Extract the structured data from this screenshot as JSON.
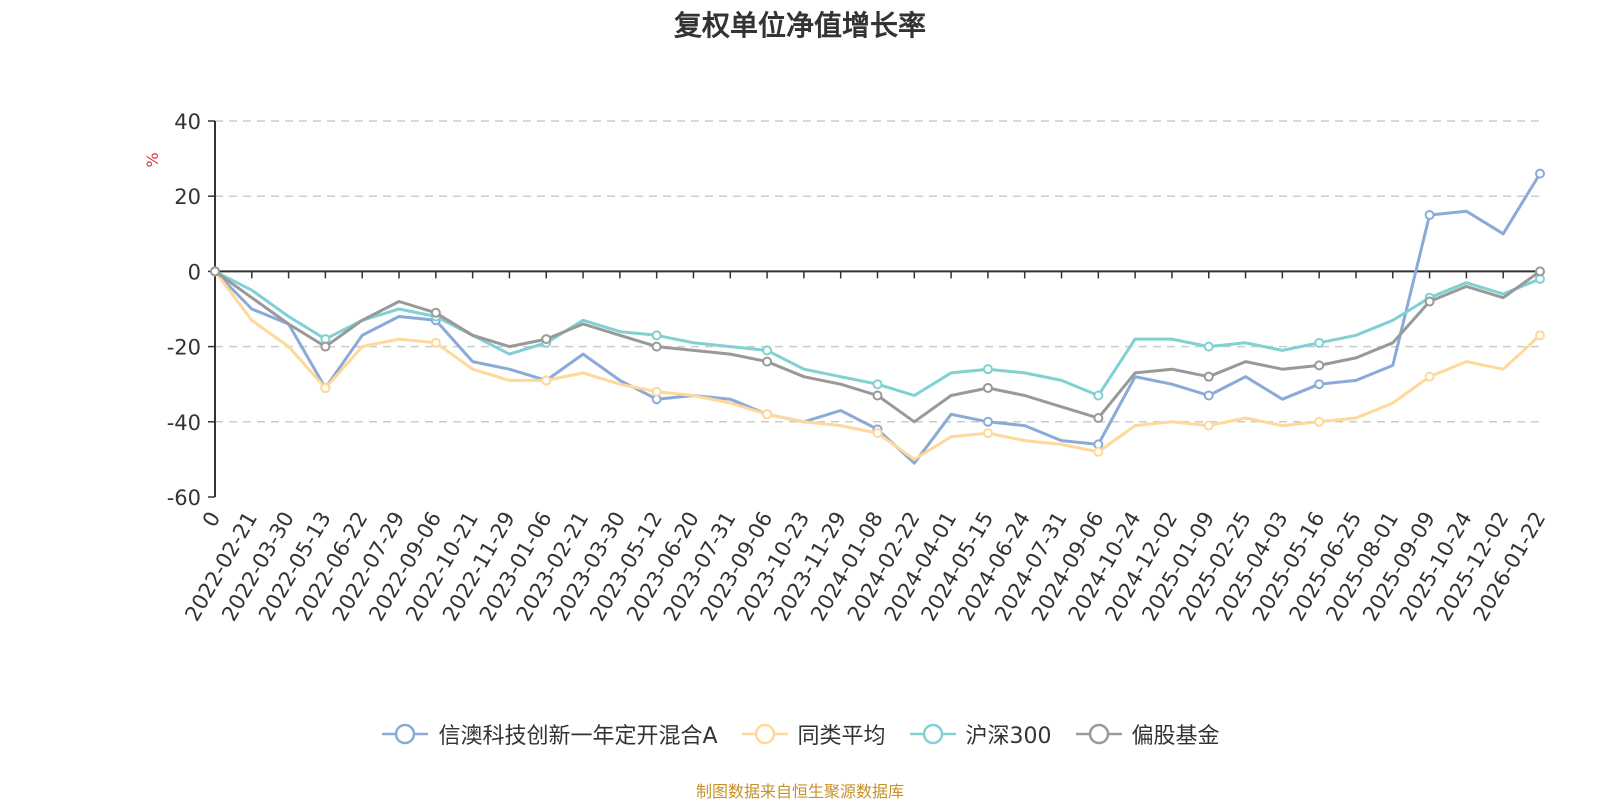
{
  "chart_data": {
    "type": "line",
    "title": "复权单位净值增长率",
    "ylabel": "%",
    "ylim": [
      -60,
      40
    ],
    "yticks": [
      -60,
      -40,
      -20,
      0,
      20,
      40
    ],
    "grid": true,
    "legend_position": "bottom-center",
    "x_tick_labels": [
      "0",
      "2022-02-21",
      "2022-03-30",
      "2022-05-13",
      "2022-06-22",
      "2022-07-29",
      "2022-09-06",
      "2022-10-21",
      "2022-11-29",
      "2023-01-06",
      "2023-02-21",
      "2023-03-30",
      "2023-05-12",
      "2023-06-20",
      "2023-07-31",
      "2023-09-06",
      "2023-10-23",
      "2023-11-29",
      "2024-01-08",
      "2024-02-22",
      "2024-04-01",
      "2024-05-15",
      "2024-06-24",
      "2024-07-31",
      "2024-09-06",
      "2024-10-24",
      "2024-12-02",
      "2025-01-09",
      "2025-02-25",
      "2025-04-03",
      "2025-05-16",
      "2025-06-25",
      "2025-08-01",
      "2025-09-09",
      "2025-10-24",
      "2025-12-02",
      "2026-01-22"
    ],
    "series": [
      {
        "name": "信澳科技创新一年定开混合A",
        "color": "#8aaad8",
        "values": [
          0,
          -10,
          -14,
          -31,
          -17,
          -12,
          -13,
          -24,
          -26,
          -29,
          -22,
          -29,
          -34,
          -33,
          -34,
          -38,
          -40,
          -37,
          -42,
          -51,
          -38,
          -40,
          -41,
          -45,
          -46,
          -28,
          -30,
          -33,
          -28,
          -34,
          -30,
          -29,
          -25,
          15,
          16,
          10,
          26
        ]
      },
      {
        "name": "同类平均",
        "color": "#ffd89a",
        "values": [
          0,
          -13,
          -20,
          -31,
          -20,
          -18,
          -19,
          -26,
          -29,
          -29,
          -27,
          -30,
          -32,
          -33,
          -35,
          -38,
          -40,
          -41,
          -43,
          -50,
          -44,
          -43,
          -45,
          -46,
          -48,
          -41,
          -40,
          -41,
          -39,
          -41,
          -40,
          -39,
          -35,
          -28,
          -24,
          -26,
          -17
        ]
      },
      {
        "name": "沪深300",
        "color": "#80d0d4",
        "values": [
          0,
          -5,
          -12,
          -18,
          -13,
          -10,
          -12,
          -17,
          -22,
          -19,
          -13,
          -16,
          -17,
          -19,
          -20,
          -21,
          -26,
          -28,
          -30,
          -33,
          -27,
          -26,
          -27,
          -29,
          -33,
          -18,
          -18,
          -20,
          -19,
          -21,
          -19,
          -17,
          -13,
          -7,
          -3,
          -6,
          -2
        ]
      },
      {
        "name": "偏股基金",
        "color": "#999999",
        "values": [
          0,
          -7,
          -14,
          -20,
          -13,
          -8,
          -11,
          -17,
          -20,
          -18,
          -14,
          -17,
          -20,
          -21,
          -22,
          -24,
          -28,
          -30,
          -33,
          -40,
          -33,
          -31,
          -33,
          -36,
          -39,
          -27,
          -26,
          -28,
          -24,
          -26,
          -25,
          -23,
          -19,
          -8,
          -4,
          -7,
          0
        ]
      }
    ]
  },
  "source_note": "制图数据来自恒生聚源数据库"
}
